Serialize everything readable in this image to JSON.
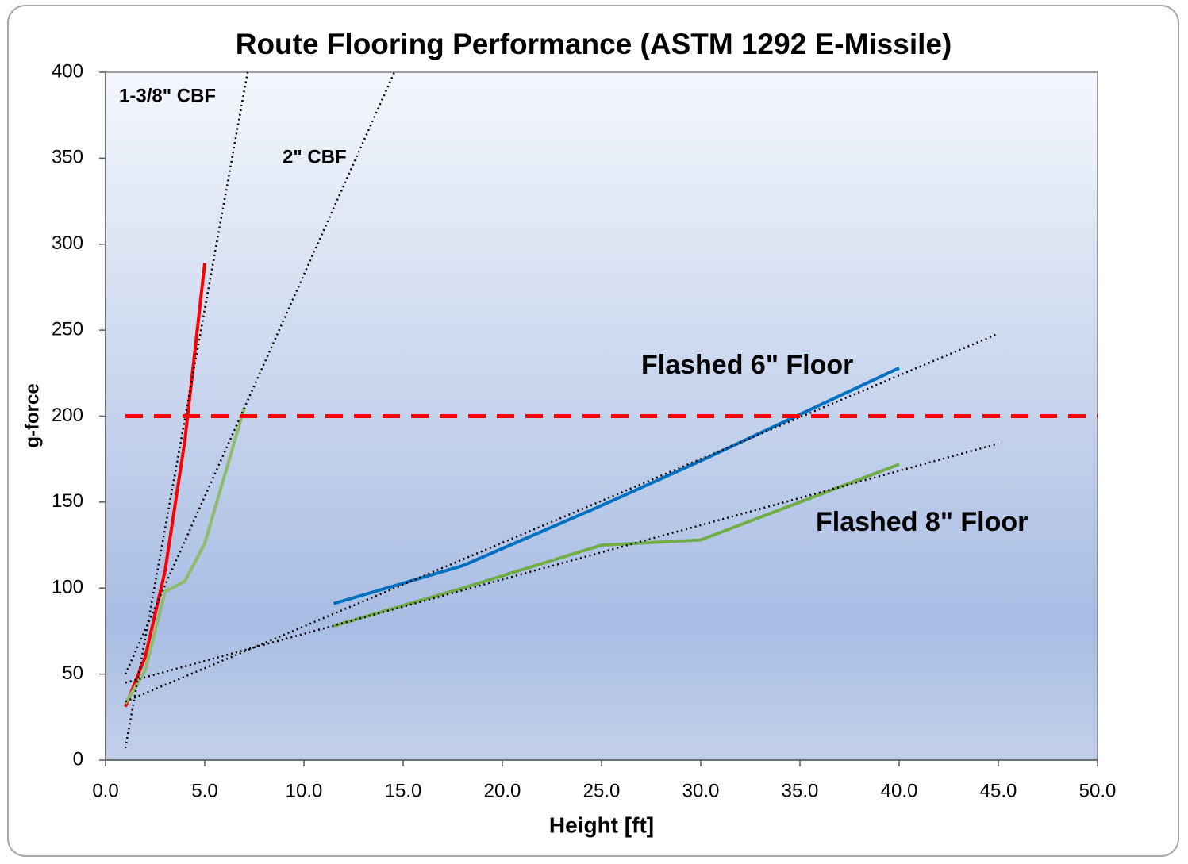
{
  "chart_data": {
    "type": "line",
    "title": "Route Flooring Performance (ASTM 1292 E-Missile)",
    "x_label": "Height [ft]",
    "y_label": "g-force",
    "xlim": [
      0,
      50
    ],
    "ylim": [
      0,
      400
    ],
    "xticks": [
      {
        "value": 0,
        "label": "0.0"
      },
      {
        "value": 5,
        "label": "5.0"
      },
      {
        "value": 10,
        "label": "10.0"
      },
      {
        "value": 15,
        "label": "15.0"
      },
      {
        "value": 20,
        "label": "20.0"
      },
      {
        "value": 25,
        "label": "25.0"
      },
      {
        "value": 30,
        "label": "30.0"
      },
      {
        "value": 35,
        "label": "35.0"
      },
      {
        "value": 40,
        "label": "40.0"
      },
      {
        "value": 45,
        "label": "45.0"
      },
      {
        "value": 50,
        "label": "50.0"
      }
    ],
    "yticks": [
      0,
      50,
      100,
      150,
      200,
      250,
      300,
      350,
      400
    ],
    "grid": false,
    "series": [
      {
        "color": "#ff0000",
        "style": "solid",
        "x": [
          1,
          2,
          3,
          4,
          5
        ],
        "values": [
          31,
          60,
          110,
          186,
          289
        ]
      },
      {
        "color": "#8fbc6a",
        "style": "solid",
        "x": [
          1,
          2,
          3,
          4,
          5,
          7
        ],
        "values": [
          33,
          52,
          98,
          104,
          126,
          205
        ]
      },
      {
        "color": "#0070c0",
        "style": "solid",
        "x": [
          11.5,
          18,
          25,
          30,
          40
        ],
        "values": [
          91,
          113,
          148,
          174,
          228
        ]
      },
      {
        "color": "#70ad47",
        "style": "solid",
        "x": [
          11.5,
          18,
          25,
          30,
          40
        ],
        "values": [
          78,
          100,
          125,
          128,
          172
        ]
      },
      {
        "color": "#000000",
        "style": "dotted",
        "x": [
          1,
          7.16
        ],
        "values": [
          7,
          400
        ]
      },
      {
        "color": "#000000",
        "style": "dotted",
        "x": [
          1,
          14.56
        ],
        "values": [
          50,
          400
        ]
      },
      {
        "color": "#000000",
        "style": "dotted",
        "x": [
          1,
          45
        ],
        "values": [
          34,
          248
        ]
      },
      {
        "color": "#000000",
        "style": "dotted",
        "x": [
          1,
          45
        ],
        "values": [
          45,
          184
        ]
      },
      {
        "color": "#ff0000",
        "style": "dashed",
        "x": [
          1,
          50
        ],
        "values": [
          200,
          200
        ]
      }
    ],
    "annotations": [
      "1-3/8\" CBF",
      "2\" CBF",
      "Flashed 6\" Floor",
      "Flashed 8\" Floor"
    ]
  }
}
